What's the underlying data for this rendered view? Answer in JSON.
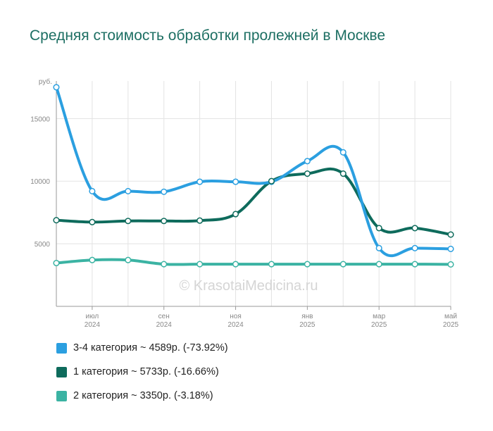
{
  "chart_data": {
    "type": "line",
    "title": "Средняя стоимость обработки пролежней в Москве",
    "ylabel": "руб.",
    "ylim": [
      0,
      18000
    ],
    "yticks": [
      5000,
      10000,
      15000
    ],
    "x_points": [
      "2024-06",
      "2024-07",
      "2024-08",
      "2024-09",
      "2024-10",
      "2024-11",
      "2024-12",
      "2025-01",
      "2025-02",
      "2025-03",
      "2025-04",
      "2025-05"
    ],
    "x_tick_labels": [
      {
        "month": "июл",
        "year": "2024"
      },
      {
        "month": "сен",
        "year": "2024"
      },
      {
        "month": "ноя",
        "year": "2024"
      },
      {
        "month": "янв",
        "year": "2025"
      },
      {
        "month": "мар",
        "year": "2025"
      },
      {
        "month": "май",
        "year": "2025"
      }
    ],
    "grid": true,
    "watermark": "© KrasotaiMedicina.ru",
    "series": [
      {
        "name": "3-4 категория",
        "color": "#2b9fe0",
        "values": [
          17500,
          9200,
          9200,
          9150,
          9950,
          9950,
          9950,
          11600,
          12300,
          4650,
          4650,
          4589
        ]
      },
      {
        "name": "1 категория",
        "color": "#0e6b5c",
        "values": [
          6880,
          6730,
          6820,
          6820,
          6850,
          7370,
          10000,
          10600,
          10600,
          6250,
          6250,
          5733
        ]
      },
      {
        "name": "2 категория",
        "color": "#3bb3a3",
        "values": [
          3460,
          3700,
          3700,
          3370,
          3370,
          3370,
          3370,
          3370,
          3370,
          3370,
          3370,
          3350
        ]
      }
    ],
    "legend": [
      {
        "label": "3-4 категория ~ 4589р. (-73.92%)",
        "color": "#2b9fe0"
      },
      {
        "label": "1 категория ~ 5733р. (-16.66%)",
        "color": "#0e6b5c"
      },
      {
        "label": "2 категория ~ 3350р. (-3.18%)",
        "color": "#3bb3a3"
      }
    ]
  }
}
